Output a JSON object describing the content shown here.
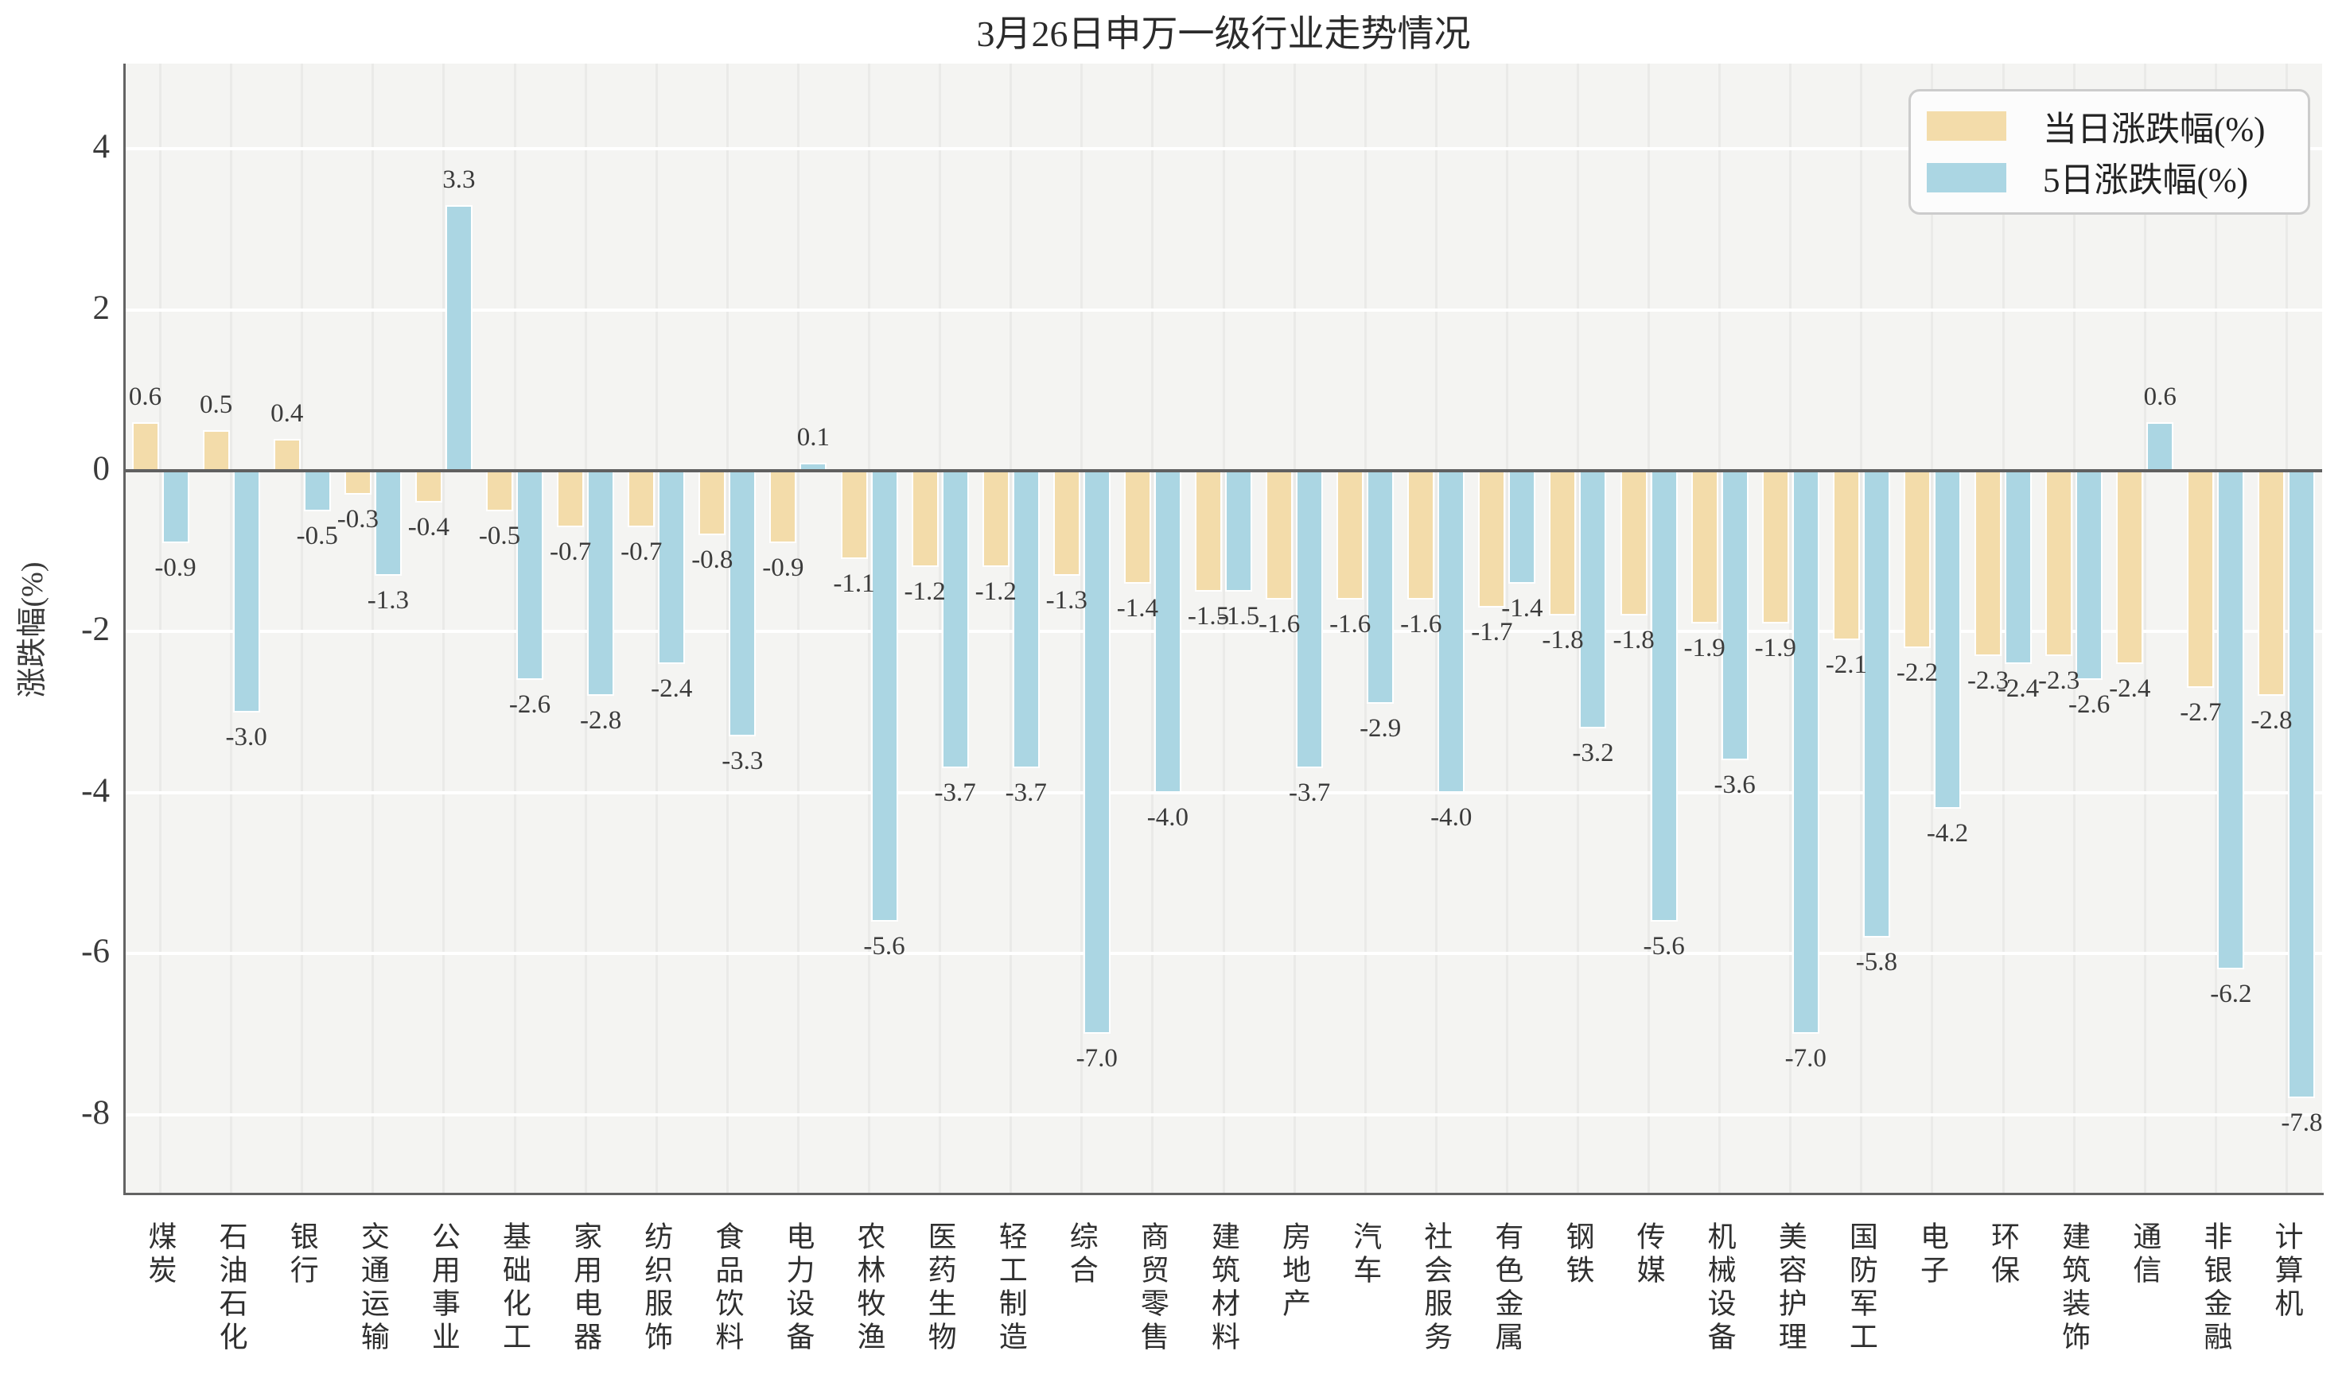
{
  "chart_data": {
    "type": "bar",
    "title": "3月26日申万一级行业走势情况",
    "ylabel": "涨跌幅(%)",
    "xlabel": "",
    "categories": [
      "煤炭",
      "石油石化",
      "银行",
      "交通运输",
      "公用事业",
      "基础化工",
      "家用电器",
      "纺织服饰",
      "食品饮料",
      "电力设备",
      "农林牧渔",
      "医药生物",
      "轻工制造",
      "综合",
      "商贸零售",
      "建筑材料",
      "房地产",
      "汽车",
      "社会服务",
      "有色金属",
      "钢铁",
      "传媒",
      "机械设备",
      "美容护理",
      "国防军工",
      "电子",
      "环保",
      "建筑装饰",
      "通信",
      "非银金融",
      "计算机"
    ],
    "series": [
      {
        "name": "当日涨跌幅(%)",
        "color": "#f3dcaa",
        "values": [
          0.6,
          0.5,
          0.4,
          -0.3,
          -0.4,
          -0.5,
          -0.7,
          -0.7,
          -0.8,
          -0.9,
          -1.1,
          -1.2,
          -1.2,
          -1.3,
          -1.4,
          -1.5,
          -1.6,
          -1.6,
          -1.6,
          -1.7,
          -1.8,
          -1.8,
          -1.9,
          -1.9,
          -2.1,
          -2.2,
          -2.3,
          -2.3,
          -2.4,
          -2.7,
          -2.8
        ]
      },
      {
        "name": "5日涨跌幅(%)",
        "color": "#abd6e3",
        "values": [
          -0.9,
          -3.0,
          -0.5,
          -1.3,
          3.3,
          -2.6,
          -2.8,
          -2.4,
          -3.3,
          0.1,
          -5.6,
          -3.7,
          -3.7,
          -7.0,
          -4.0,
          -1.5,
          -3.7,
          -2.9,
          -4.0,
          -1.4,
          -3.2,
          -5.6,
          -3.6,
          -7.0,
          -5.8,
          -4.2,
          -2.4,
          -2.6,
          0.6,
          -6.2,
          -7.8
        ]
      }
    ],
    "yticks": [
      4,
      2,
      0,
      -2,
      -4,
      -6,
      -8
    ],
    "ylim": [
      -8.97,
      5.06
    ],
    "grid": true,
    "legend_position": "upper right",
    "plot_background": "#f4f4f2",
    "gridline_color_horizontal": "#ffffff",
    "gridline_color_vertical": "#eaeae8",
    "axis_line_color": "#636363"
  }
}
